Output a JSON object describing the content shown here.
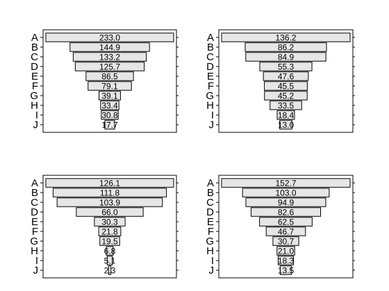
{
  "chart_data": [
    {
      "type": "bar",
      "orientation": "horizontal-centered",
      "categories": [
        "A",
        "B",
        "C",
        "D",
        "E",
        "F",
        "G",
        "H",
        "I",
        "J"
      ],
      "values": [
        233.0,
        144.9,
        133.2,
        125.7,
        86.5,
        79.1,
        39.1,
        33.4,
        30.8,
        17.7
      ],
      "labels": [
        "233.0",
        "144.9",
        "133.2",
        "125.7",
        "86.5",
        "79.1",
        "39.1",
        "33.4",
        "30.8",
        "17.7"
      ]
    },
    {
      "type": "bar",
      "orientation": "horizontal-centered",
      "categories": [
        "A",
        "B",
        "C",
        "D",
        "E",
        "F",
        "G",
        "H",
        "I",
        "J"
      ],
      "values": [
        136.2,
        86.2,
        84.9,
        55.3,
        47.6,
        45.5,
        45.2,
        33.5,
        18.4,
        13.0
      ],
      "labels": [
        "136.2",
        "86.2",
        "84.9",
        "55.3",
        "47.6",
        "45.5",
        "45.2",
        "33.5",
        "18.4",
        "13.0"
      ]
    },
    {
      "type": "bar",
      "orientation": "horizontal-centered",
      "categories": [
        "A",
        "B",
        "C",
        "D",
        "E",
        "F",
        "G",
        "H",
        "I",
        "J"
      ],
      "values": [
        126.1,
        111.8,
        103.9,
        66.0,
        30.3,
        21.8,
        19.5,
        6.8,
        5.1,
        2.3
      ],
      "labels": [
        "126.1",
        "111.8",
        "103.9",
        "66.0",
        "30.3",
        "21.8",
        "19.5",
        "6.8",
        "5.1",
        "2.3"
      ]
    },
    {
      "type": "bar",
      "orientation": "horizontal-centered",
      "categories": [
        "A",
        "B",
        "C",
        "D",
        "E",
        "F",
        "G",
        "H",
        "I",
        "J"
      ],
      "values": [
        152.7,
        103.0,
        94.9,
        82.6,
        62.5,
        46.7,
        30.7,
        21.0,
        18.3,
        13.5
      ],
      "labels": [
        "152.7",
        "103.0",
        "94.9",
        "82.6",
        "62.5",
        "46.7",
        "30.7",
        "21.0",
        "18.3",
        "13.5"
      ]
    }
  ]
}
